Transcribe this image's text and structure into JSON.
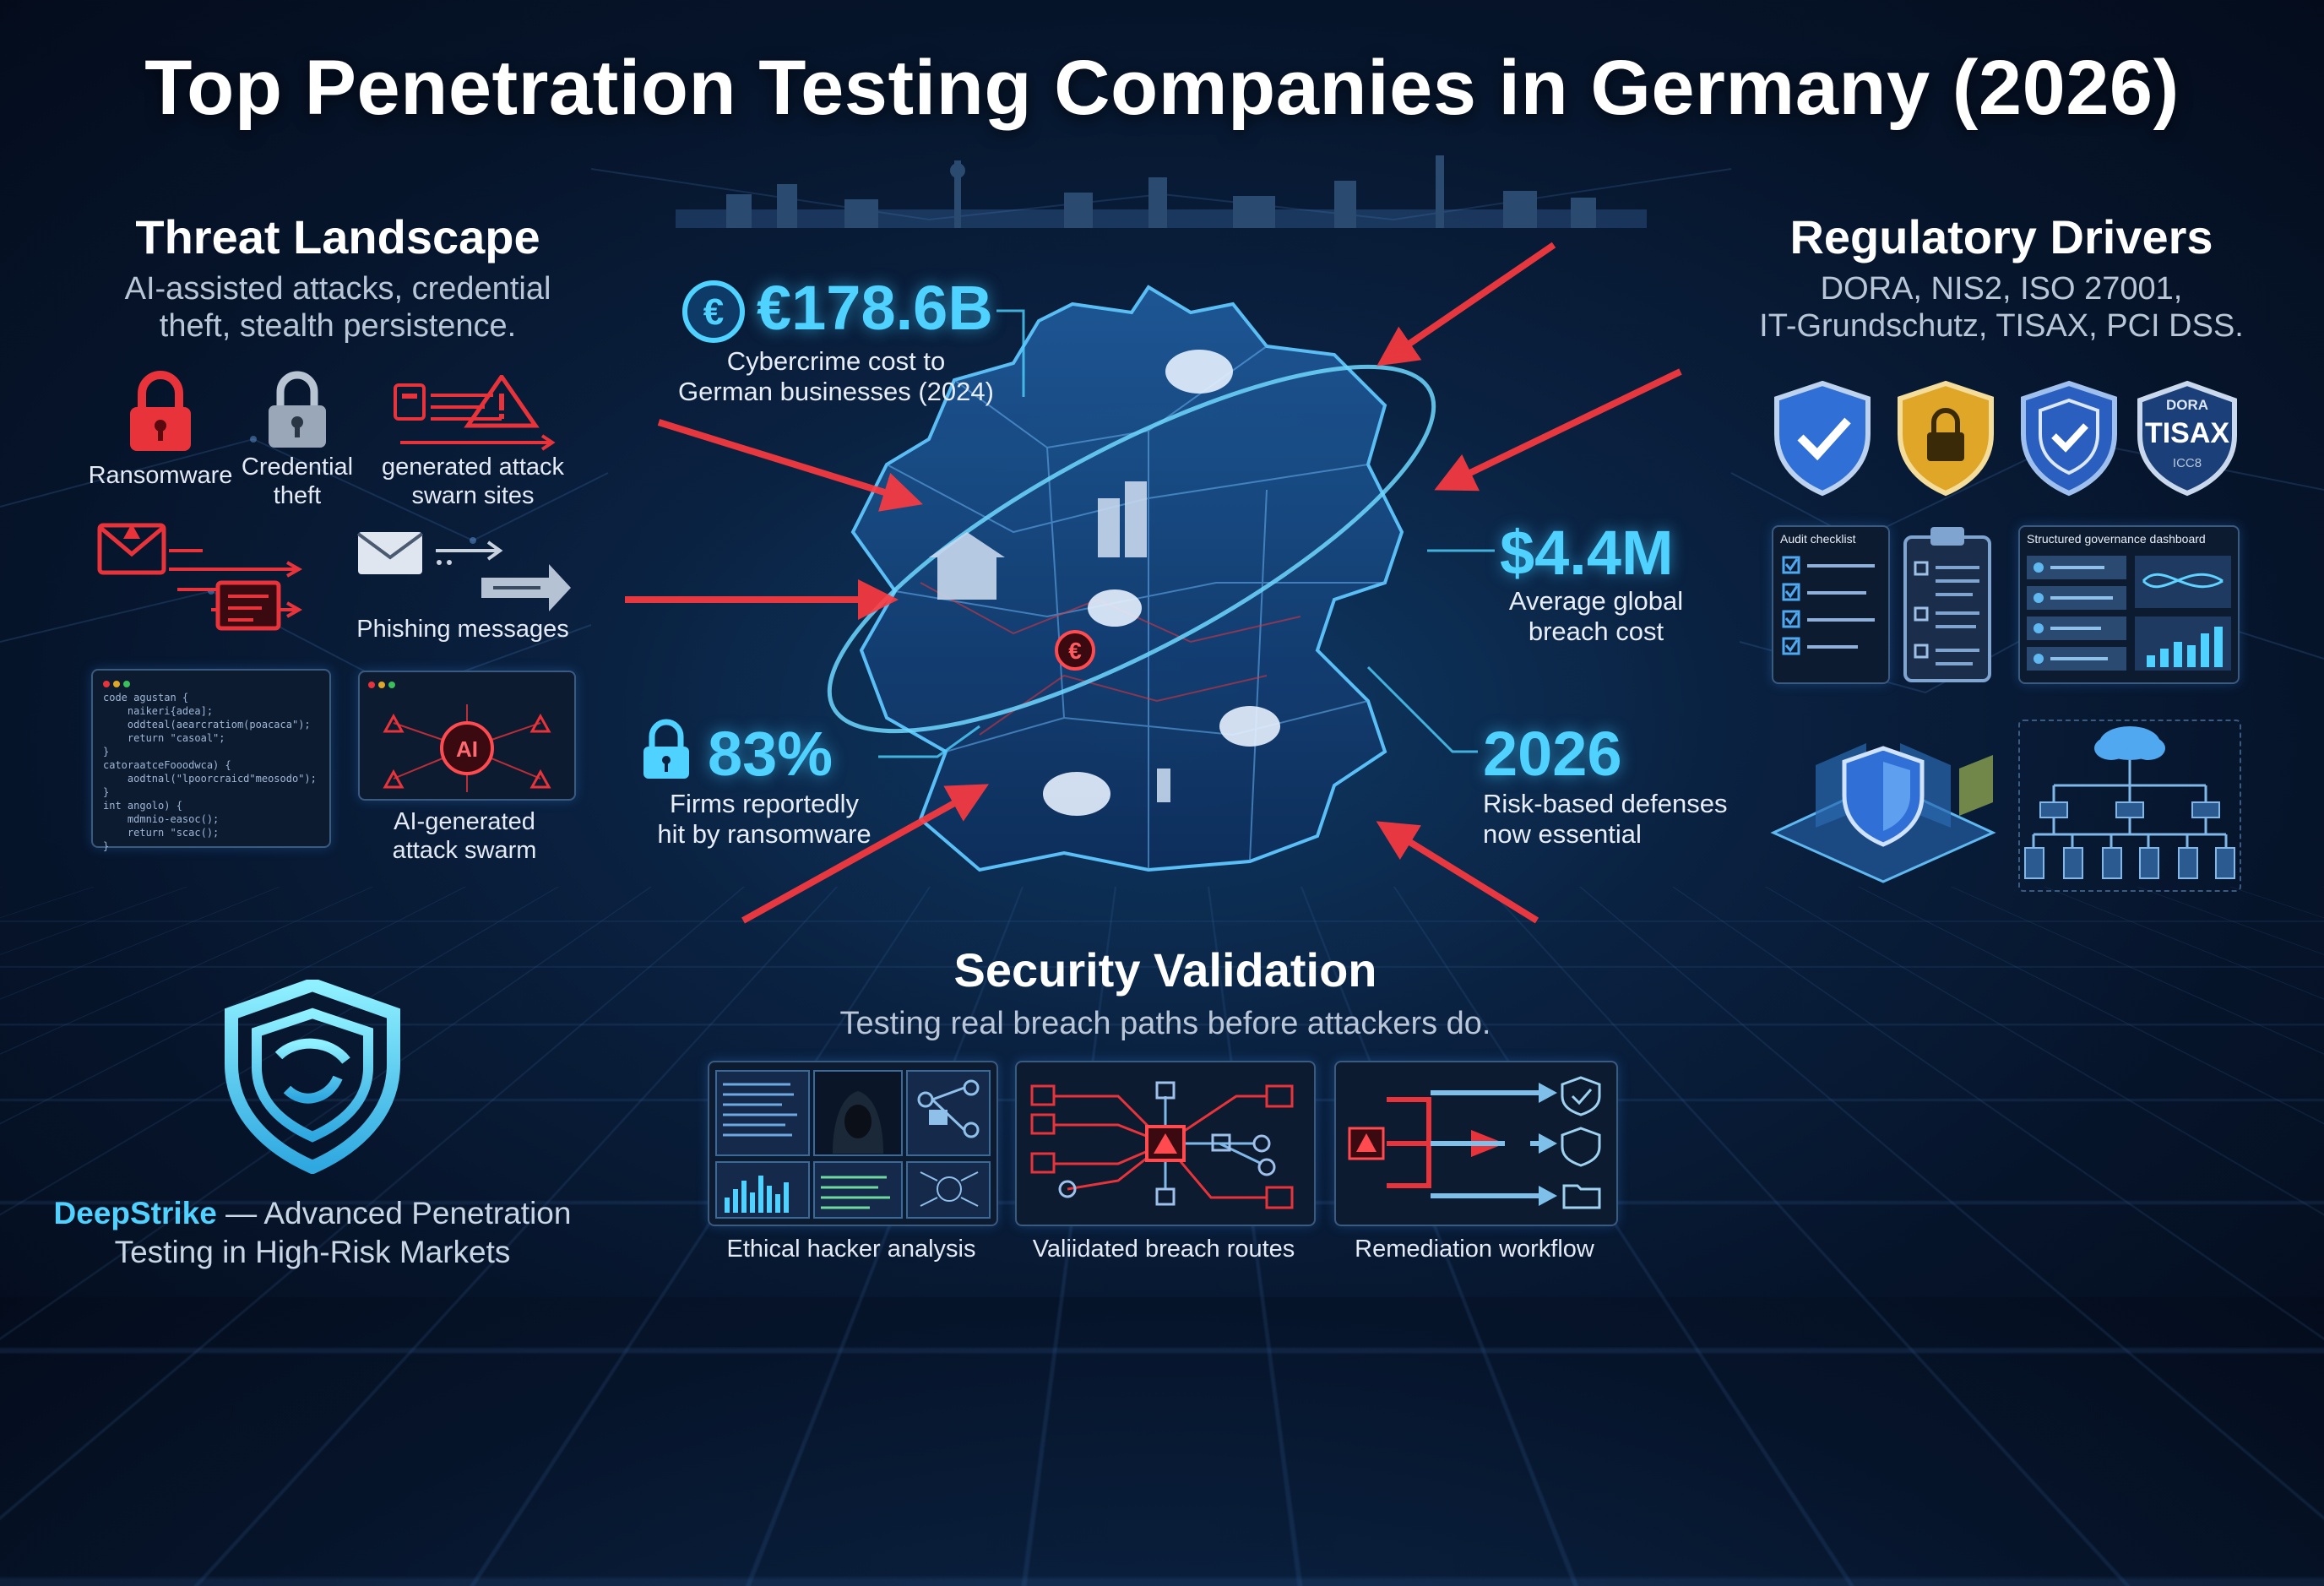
{
  "title": "Top Penetration Testing Companies in Germany (2026)",
  "threat": {
    "heading": "Threat Landscape",
    "subtitle_line1": "AI-assisted attacks, credential",
    "subtitle_line2": "theft, stealth persistence.",
    "items": {
      "ransomware": "Ransomware",
      "credential_l1": "Credential",
      "credential_l2": "theft",
      "generated_l1": "generated attack",
      "generated_l2": "swarn sites",
      "phishing": "Phishing messages",
      "ai_swarm_l1": "AI-generated",
      "ai_swarm_l2": "attack swarm",
      "ai_badge": "AI"
    },
    "code_lines": [
      "code agustan {",
      "    naikeri{adea];",
      "    oddteal(aearcratiom(poacaca\");",
      "    return \"casoal\";",
      "}",
      "catoraatceFooodwca) {",
      "    aodtnal(\"lpoorcraicd\"meosodo\");",
      "}",
      "int angolo) {",
      "    mdmnio-easoc();",
      "    return \"scac();",
      "}"
    ]
  },
  "stats": {
    "cybercrime_value": "€178.6B",
    "cybercrime_l1": "Cybercrime cost to",
    "cybercrime_l2": "German businesses (2024)",
    "euro_symbol": "€",
    "breach_value": "$4.4M",
    "breach_l1": "Average global",
    "breach_l2": "breach cost",
    "ransom_value": "83%",
    "ransom_l1": "Firms reportedly",
    "ransom_l2": "hit by ransomware",
    "year_value": "2026",
    "year_l1": "Risk-based defenses",
    "year_l2": "now essential"
  },
  "regulatory": {
    "heading": "Regulatory Drivers",
    "subtitle_line1": "DORA, NIS2, ISO 27001,",
    "subtitle_line2": "IT-Grundschutz, TISAX, PCI DSS.",
    "badge_top": "DORA",
    "badge_main": "TISAX",
    "badge_bottom": "ICC8",
    "audit_label": "Audit checklist",
    "dashboard_label": "Structured governance dashboard"
  },
  "validation": {
    "heading": "Security Validation",
    "subtitle": "Testing real breach paths before attackers do.",
    "cards": [
      "Ethical hacker analysis",
      "Valiidated breach routes",
      "Remediation workflow"
    ]
  },
  "brand": {
    "name": "DeepStrike",
    "tagline_l1": " — Advanced Penetration",
    "tagline_l2": "Testing in High-Risk Markets"
  },
  "colors": {
    "accent_cyan": "#4fd2ff",
    "threat_red": "#e8333a",
    "shield_blue": "#2f6fd6",
    "lock_gold": "#e0a628"
  }
}
